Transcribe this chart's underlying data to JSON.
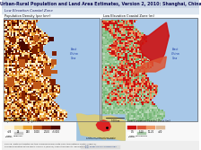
{
  "title": "Urban-Rural Population and Land Area Estimates, Version 2, 2010: Shanghai, China",
  "subtitle": "Low Elevation Coastal Zone",
  "map1_label": "Population Density (per km²)",
  "map2_label": "Low Elevation Coastal Zone (m)",
  "legend1_title": "Population Density (per km²)",
  "legend2_title": "Low Elevation Coastal Zone (m)",
  "legend1_colors": [
    "#FFF5DC",
    "#F5D78E",
    "#E8A030",
    "#C05818",
    "#802000",
    "#4A0800"
  ],
  "legend1_labels": [
    "<25",
    "25",
    "250",
    "1,000",
    "2,500",
    ">5,000"
  ],
  "legend1_extra_colors": [
    "#FFFFFF",
    "#C8C8C8"
  ],
  "legend1_extra_labels": [
    "Urban Extents",
    "Globcover"
  ],
  "legend2_colors": [
    "#CC1111",
    "#DD5533",
    "#EE9966",
    "#DDBB99"
  ],
  "legend2_labels": [
    "0-5",
    "5-10",
    "10-20",
    ">20"
  ],
  "legend2_extra_colors": [
    "#FFFFFF",
    "#A8C8A8"
  ],
  "legend2_extra_labels": [
    "Urban Extents",
    "Waterbodies"
  ],
  "bg_color": "#FFFFFF",
  "title_bg": "#C8D4E4",
  "subtitle_bg": "#DDE6F0",
  "map1_sea_color": "#A8C8E8",
  "map2_sea_color": "#A8C8E8",
  "map2_land_base": "#98C898",
  "footer_bg": "#F0F0F0",
  "east_china_sea": "East\nChina\nSea"
}
